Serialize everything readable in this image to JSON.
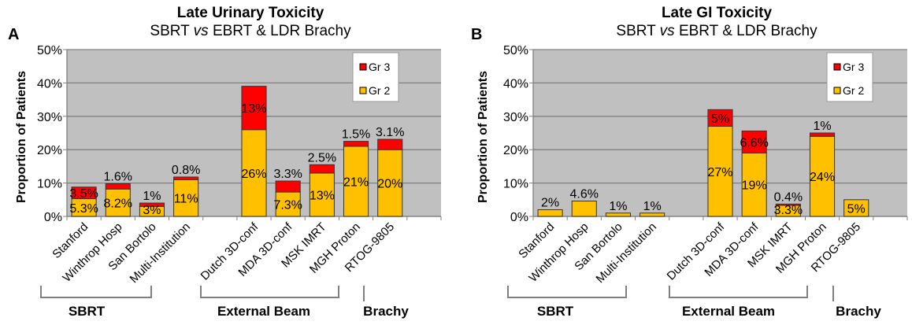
{
  "chart_data": [
    {
      "type": "bar",
      "stacked": true,
      "panel_letter": "A",
      "title": "Late Urinary Toxicity",
      "subtitle_parts": [
        "SBRT ",
        "vs",
        " EBRT & LDR Brachy"
      ],
      "ylabel": "Proportion of Patients",
      "ylim": [
        0,
        50
      ],
      "yticks": [
        "0%",
        "10%",
        "20%",
        "30%",
        "40%",
        "50%"
      ],
      "grid": true,
      "legend_position": "top-right",
      "categories": [
        "Stanford",
        "Winthrop Hosp",
        "San Bortolo",
        "Multi-Institution",
        "",
        "Dutch 3D-conf",
        "MDA 3D-conf",
        "MSK IMRT",
        "MGH Proton",
        "RTOG-9805"
      ],
      "series": [
        {
          "name": "Gr 2",
          "color": "#FFC000",
          "values": [
            5.3,
            8.2,
            3,
            11,
            null,
            26,
            7.3,
            13,
            21,
            20
          ],
          "labels": [
            "5.3%",
            "8.2%",
            "3%",
            "11%",
            "",
            "26%",
            "7.3%",
            "13%",
            "21%",
            "20%"
          ]
        },
        {
          "name": "Gr 3",
          "color": "#FF0000",
          "values": [
            3.5,
            1.6,
            1,
            0.8,
            null,
            13,
            3.3,
            2.5,
            1.5,
            3.1
          ],
          "labels": [
            "3.5%",
            "1.6%",
            "1%",
            "0.8%",
            "",
            "13%",
            "3.3%",
            "2.5%",
            "1.5%",
            "3.1%"
          ]
        }
      ],
      "groups": [
        "SBRT",
        "External Beam",
        "Brachy"
      ]
    },
    {
      "type": "bar",
      "stacked": true,
      "panel_letter": "B",
      "title": "Late GI Toxicity",
      "subtitle_parts": [
        "SBRT ",
        "vs",
        " EBRT & LDR Brachy"
      ],
      "ylabel": "Proportion of Patients",
      "ylim": [
        0,
        50
      ],
      "yticks": [
        "0%",
        "10%",
        "20%",
        "30%",
        "40%",
        "50%"
      ],
      "grid": true,
      "legend_position": "top-right",
      "categories": [
        "Stanford",
        "Winthrop Hosp",
        "San Bortolo",
        "Multi-Institution",
        "",
        "Dutch 3D-conf",
        "MDA 3D-conf",
        "MSK IMRT",
        "MGH Proton",
        "RTOG-9805"
      ],
      "series": [
        {
          "name": "Gr 2",
          "color": "#FFC000",
          "values": [
            2,
            4.6,
            1,
            1,
            null,
            27,
            19,
            3.3,
            24,
            5
          ],
          "labels": [
            "2%",
            "4.6%",
            "1%",
            "1%",
            "",
            "27%",
            "19%",
            "3.3%",
            "24%",
            "5%"
          ]
        },
        {
          "name": "Gr 3",
          "color": "#FF0000",
          "values": [
            0,
            0,
            0,
            0,
            null,
            5,
            6.6,
            0.4,
            1,
            0
          ],
          "labels": [
            "",
            "",
            "",
            "",
            "",
            "5%",
            "6.6%",
            "0.4%",
            "1%",
            ""
          ]
        }
      ],
      "groups": [
        "SBRT",
        "External Beam",
        "Brachy"
      ]
    }
  ]
}
